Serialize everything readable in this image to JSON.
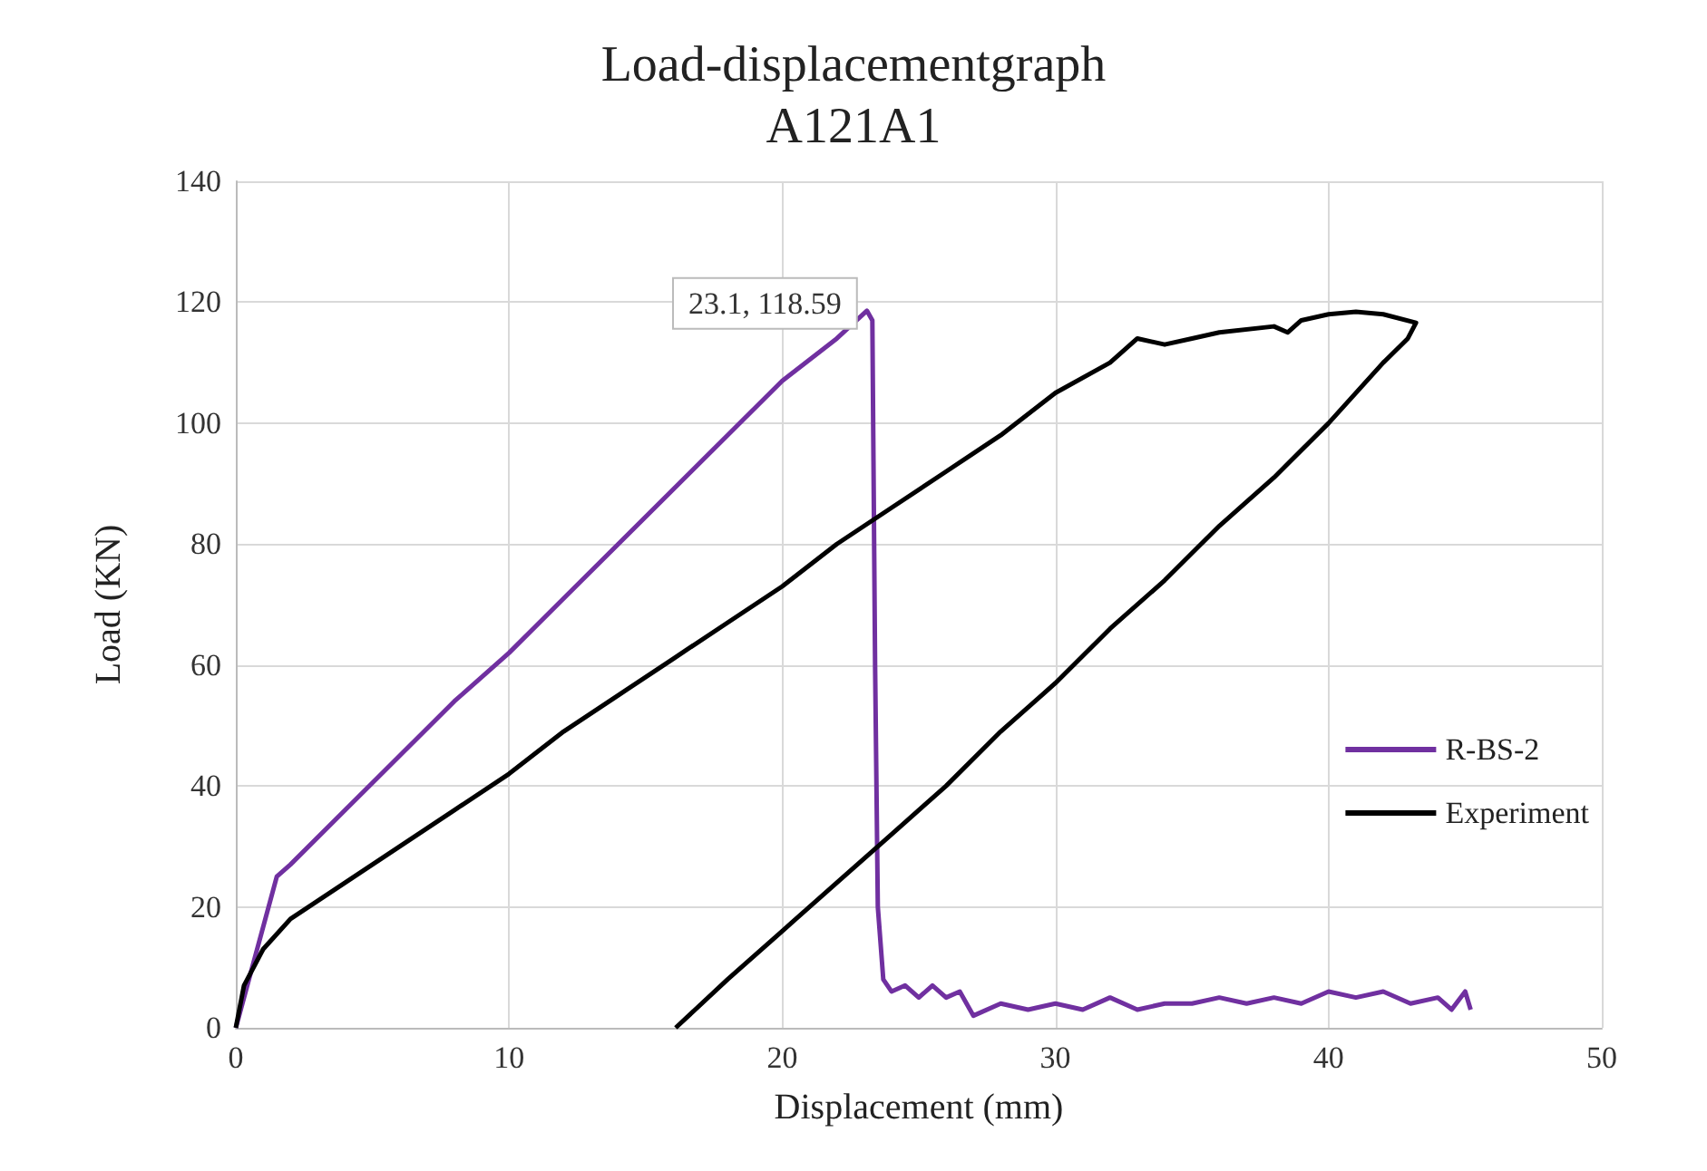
{
  "chart_data": {
    "type": "line",
    "title": "Load-displacementgraph\nA121A1",
    "xlabel": "Displacement (mm)",
    "ylabel": "Load (KN)",
    "xlim": [
      0,
      50
    ],
    "xticks": [
      0,
      10,
      20,
      30,
      40,
      50
    ],
    "ylim": [
      0,
      140
    ],
    "yticks": [
      0,
      20,
      40,
      60,
      80,
      100,
      120,
      140
    ],
    "grid": true,
    "legend": "right",
    "marker": "none",
    "line_style": "solid",
    "annotations": [
      {
        "text": "23.1, 118.59",
        "x": 23.1,
        "y": 118.59
      }
    ],
    "series": [
      {
        "name": "R-BS-2",
        "color": "#7030a0",
        "x": [
          0,
          1.5,
          2,
          4,
          6,
          8,
          10,
          12,
          14,
          16,
          18,
          20,
          22,
          23.1,
          23.3,
          23.4,
          23.5,
          23.7,
          24,
          24.5,
          25,
          25.5,
          26,
          26.5,
          27,
          28,
          29,
          30,
          31,
          32,
          33,
          34,
          35,
          36,
          37,
          38,
          39,
          40,
          41,
          42,
          43,
          44,
          44.5,
          45,
          45.2
        ],
        "values": [
          0,
          25,
          27,
          36,
          45,
          54,
          62,
          71,
          80,
          89,
          98,
          107,
          114,
          118.59,
          117,
          60,
          20,
          8,
          6,
          7,
          5,
          7,
          5,
          6,
          2,
          4,
          3,
          4,
          3,
          5,
          3,
          4,
          4,
          5,
          4,
          5,
          4,
          6,
          5,
          6,
          4,
          5,
          3,
          6,
          3
        ]
      },
      {
        "name": "Experiment",
        "color": "#000000",
        "x": [
          0,
          0.3,
          1,
          2,
          3,
          4,
          6,
          8,
          10,
          12,
          14,
          16,
          18,
          20,
          22,
          24,
          26,
          28,
          30,
          32,
          33,
          34,
          35,
          36,
          38,
          38.5,
          39,
          40,
          41,
          42,
          43.2,
          42.9,
          42,
          40,
          38,
          36,
          34,
          32,
          30,
          28,
          26,
          24,
          22,
          20,
          18,
          16.1
        ],
        "values": [
          0,
          7,
          13,
          18,
          21,
          24,
          30,
          36,
          42,
          49,
          55,
          61,
          67,
          73,
          80,
          86,
          92,
          98,
          105,
          110,
          114,
          113,
          114,
          115,
          116,
          115,
          117,
          118,
          118.4,
          118,
          116.6,
          114,
          110,
          100,
          91,
          83,
          74,
          66,
          57,
          49,
          40,
          32,
          24,
          16,
          8,
          0
        ]
      }
    ]
  }
}
